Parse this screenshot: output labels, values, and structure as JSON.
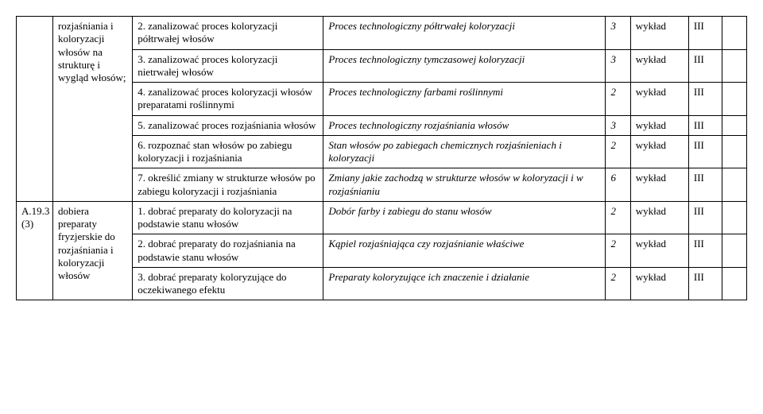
{
  "row1": {
    "topic": "rozjaśniania i koloryzacji włosów na strukturę i wygląd włosów;",
    "task": "2. zanalizować proces koloryzacji półtrwałej włosów",
    "desc": "Proces technologiczny półtrwałej koloryzacji",
    "num": "3",
    "type": "wykład",
    "lvl": "III"
  },
  "row2": {
    "task": "3. zanalizować proces koloryzacji nietrwałej włosów",
    "desc": "Proces technologiczny tymczasowej koloryzacji",
    "num": "3",
    "type": "wykład",
    "lvl": "III"
  },
  "row3": {
    "task": "4. zanalizować proces koloryzacji włosów preparatami roślinnymi",
    "desc": "Proces technologiczny farbami roślinnymi",
    "num": "2",
    "type": "wykład",
    "lvl": "III"
  },
  "row4": {
    "task": "5. zanalizować proces rozjaśniania włosów",
    "desc": "Proces technologiczny rozjaśniania włosów",
    "num": "3",
    "type": "wykład",
    "lvl": "III"
  },
  "row5": {
    "task": "6. rozpoznać stan włosów po zabiegu koloryzacji i rozjaśniania",
    "desc": "Stan włosów po zabiegach chemicznych rozjaśnieniach i koloryzacji",
    "num": "2",
    "type": "wykład",
    "lvl": "III"
  },
  "row6": {
    "task": "7. określić zmiany w strukturze włosów po zabiegu koloryzacji i rozjaśniania",
    "desc": "Zmiany jakie zachodzą w strukturze włosów w koloryzacji i w rozjaśnianiu",
    "num": "6",
    "type": "wykład",
    "lvl": "III"
  },
  "row7": {
    "code": "A.19.3 (3)",
    "topic": "dobiera preparaty fryzjerskie do rozjaśniania i koloryzacji włosów",
    "task": "1. dobrać preparaty do koloryzacji na podstawie stanu włosów",
    "desc": "Dobór farby i zabiegu do stanu włosów",
    "num": "2",
    "type": "wykład",
    "lvl": "III"
  },
  "row8": {
    "task": "2. dobrać preparaty do rozjaśniania na podstawie stanu włosów",
    "desc": "Kąpiel rozjaśniająca czy  rozjaśnianie właściwe",
    "num": "2",
    "type": "wykład",
    "lvl": "III"
  },
  "row9": {
    "task": "3. dobrać preparaty koloryzujące do oczekiwanego efektu",
    "desc": "Preparaty koloryzujące ich znaczenie i działanie",
    "num": "2",
    "type": "wykład",
    "lvl": "III"
  }
}
